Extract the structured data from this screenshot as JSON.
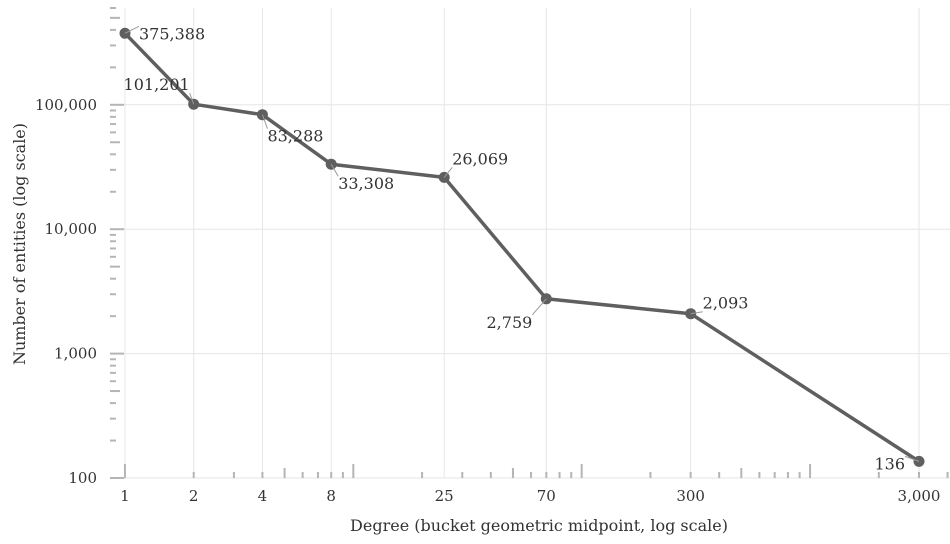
{
  "chart_data": {
    "type": "line",
    "title": "",
    "xlabel": "Degree (bucket geometric midpoint, log scale)",
    "ylabel": "Number of entities (log scale)",
    "x_scale": "log",
    "y_scale": "log",
    "xlim": [
      0.86,
      4100
    ],
    "ylim": [
      100,
      600000
    ],
    "grid": true,
    "legend": "none",
    "x_ticks": [
      {
        "value": 1,
        "label": "1"
      },
      {
        "value": 2,
        "label": "2"
      },
      {
        "value": 4,
        "label": "4"
      },
      {
        "value": 8,
        "label": "8"
      },
      {
        "value": 25,
        "label": "25"
      },
      {
        "value": 70,
        "label": "70"
      },
      {
        "value": 300,
        "label": "300"
      },
      {
        "value": 3000,
        "label": "3,000"
      }
    ],
    "y_ticks": [
      {
        "value": 100,
        "label": "100"
      },
      {
        "value": 1000,
        "label": "1,000"
      },
      {
        "value": 10000,
        "label": "10,000"
      },
      {
        "value": 100000,
        "label": "100,000"
      }
    ],
    "series": [
      {
        "x": [
          1,
          2,
          4,
          8,
          25,
          70,
          300,
          3000
        ],
        "y": [
          375388,
          101201,
          83288,
          33308,
          26069,
          2759,
          2093,
          136
        ],
        "labels": [
          "375,388",
          "101,201",
          "83,288",
          "33,308",
          "26,069",
          "2,759",
          "2,093",
          "136"
        ]
      }
    ],
    "colors": {
      "line": "#5f5f5f",
      "grid": "#e6e6e6",
      "rug": "#b5b5b5",
      "text": "#333333"
    }
  }
}
